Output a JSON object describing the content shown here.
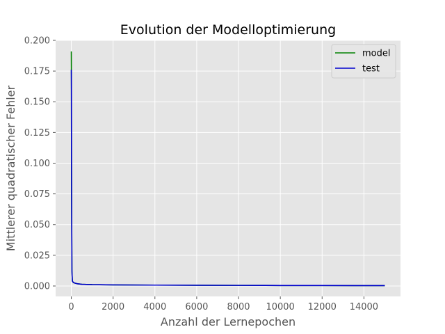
{
  "chart_data": {
    "type": "line",
    "title": "Evolution der Modelloptimierung",
    "xlabel": "Anzahl der Lernepochen",
    "ylabel": "Mittlerer quadratischer Fehler",
    "xlim": [
      -750,
      15750
    ],
    "ylim": [
      -0.0085,
      0.2
    ],
    "x_ticks": [
      0,
      2000,
      4000,
      6000,
      8000,
      10000,
      12000,
      14000
    ],
    "x_tick_labels": [
      "0",
      "2000",
      "4000",
      "6000",
      "8000",
      "10000",
      "12000",
      "14000"
    ],
    "y_ticks": [
      0.0,
      0.025,
      0.05,
      0.075,
      0.1,
      0.125,
      0.15,
      0.175,
      0.2
    ],
    "y_tick_labels": [
      "0.000",
      "0.025",
      "0.050",
      "0.075",
      "0.100",
      "0.125",
      "0.150",
      "0.175",
      "0.200"
    ],
    "grid": true,
    "legend_position": "top-right",
    "background": "#e5e5e5",
    "series": [
      {
        "name": "model",
        "color": "#008000",
        "x": [
          0,
          5,
          10,
          20,
          30,
          50,
          100,
          200,
          300,
          500,
          1000,
          2000,
          4000,
          6000,
          8000,
          10000,
          12000,
          14000,
          15000
        ],
        "y": [
          0.191,
          0.17,
          0.1,
          0.05,
          0.012,
          0.004,
          0.0028,
          0.0022,
          0.0018,
          0.0014,
          0.0011,
          0.0009,
          0.0007,
          0.0006,
          0.0005,
          0.0004,
          0.0004,
          0.0003,
          0.0003
        ]
      },
      {
        "name": "test",
        "color": "#0000cd",
        "x": [
          0,
          5,
          10,
          20,
          30,
          50,
          100,
          200,
          300,
          500,
          1000,
          2000,
          4000,
          6000,
          8000,
          10000,
          12000,
          14000,
          15000
        ],
        "y": [
          0.176,
          0.16,
          0.1,
          0.05,
          0.012,
          0.004,
          0.0028,
          0.0022,
          0.0018,
          0.0014,
          0.0011,
          0.0009,
          0.0007,
          0.0006,
          0.0005,
          0.0004,
          0.0004,
          0.0003,
          0.0003
        ]
      }
    ]
  }
}
